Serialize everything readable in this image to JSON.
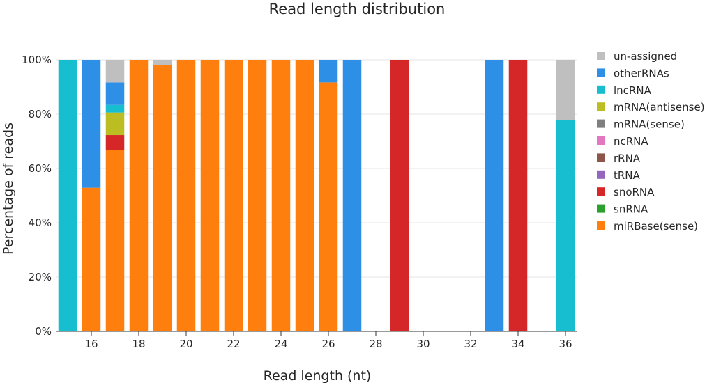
{
  "chart_data": {
    "type": "bar",
    "stacked": true,
    "title": "Read length distribution",
    "xlabel": "Read length (nt)",
    "ylabel": "Percentage of reads",
    "x": [
      15,
      16,
      17,
      18,
      19,
      20,
      21,
      22,
      23,
      24,
      25,
      26,
      27,
      28,
      29,
      30,
      31,
      32,
      33,
      34,
      35,
      36
    ],
    "xlim": [
      14.5,
      36.5
    ],
    "xticks": [
      16,
      18,
      20,
      22,
      24,
      26,
      28,
      30,
      32,
      34,
      36
    ],
    "ylim": [
      0,
      100
    ],
    "yticks": [
      0,
      20,
      40,
      60,
      80,
      100
    ],
    "ytick_labels": [
      "0%",
      "20%",
      "40%",
      "60%",
      "80%",
      "100%"
    ],
    "grid": "horizontal",
    "legend_position": "right",
    "series": [
      {
        "name": "miRBase(sense)",
        "color": "#ff7f0e",
        "values": [
          0,
          52.9,
          66.7,
          100,
          98.1,
          100,
          100,
          100,
          100,
          100,
          100,
          91.7,
          0,
          0,
          0,
          0,
          0,
          0,
          0,
          0,
          0,
          0
        ]
      },
      {
        "name": "snRNA",
        "color": "#2ca02c",
        "values": [
          0,
          0,
          0,
          0,
          0,
          0,
          0,
          0,
          0,
          0,
          0,
          0,
          0,
          0,
          0,
          0,
          0,
          0,
          0,
          0,
          0,
          0
        ]
      },
      {
        "name": "snoRNA",
        "color": "#d62728",
        "values": [
          0,
          0,
          5.6,
          0,
          0,
          0,
          0,
          0,
          0,
          0,
          0,
          0,
          0,
          0,
          100,
          0,
          0,
          0,
          0,
          100,
          0,
          0
        ]
      },
      {
        "name": "tRNA",
        "color": "#9467bd",
        "values": [
          0,
          0,
          0,
          0,
          0,
          0,
          0,
          0,
          0,
          0,
          0,
          0,
          0,
          0,
          0,
          0,
          0,
          0,
          0,
          0,
          0,
          0
        ]
      },
      {
        "name": "rRNA",
        "color": "#8c564b",
        "values": [
          0,
          0,
          0,
          0,
          0,
          0,
          0,
          0,
          0,
          0,
          0,
          0,
          0,
          0,
          0,
          0,
          0,
          0,
          0,
          0,
          0,
          0
        ]
      },
      {
        "name": "ncRNA",
        "color": "#e377c2",
        "values": [
          0,
          0,
          0,
          0,
          0,
          0,
          0,
          0,
          0,
          0,
          0,
          0,
          0,
          0,
          0,
          0,
          0,
          0,
          0,
          0,
          0,
          0
        ]
      },
      {
        "name": "mRNA(sense)",
        "color": "#7f7f7f",
        "values": [
          0,
          0,
          0,
          0,
          0,
          0,
          0,
          0,
          0,
          0,
          0,
          0,
          0,
          0,
          0,
          0,
          0,
          0,
          0,
          0,
          0,
          0
        ]
      },
      {
        "name": "mRNA(antisense)",
        "color": "#bcbd22",
        "values": [
          0,
          0,
          8.3,
          0,
          0,
          0,
          0,
          0,
          0,
          0,
          0,
          0,
          0,
          0,
          0,
          0,
          0,
          0,
          0,
          0,
          0,
          0
        ]
      },
      {
        "name": "lncRNA",
        "color": "#17becf",
        "values": [
          100,
          0,
          2.8,
          0,
          0,
          0,
          0,
          0,
          0,
          0,
          0,
          0,
          0,
          0,
          0,
          0,
          0,
          0,
          0,
          0,
          0,
          77.8
        ]
      },
      {
        "name": "otherRNAs",
        "color": "#2e8fe6",
        "values": [
          0,
          47.1,
          8.3,
          0,
          0,
          0,
          0,
          0,
          0,
          0,
          0,
          8.3,
          100,
          0,
          0,
          0,
          0,
          0,
          100,
          0,
          0,
          0
        ]
      },
      {
        "name": "un-assigned",
        "color": "#bfbfbf",
        "values": [
          0,
          0,
          8.3,
          0,
          1.9,
          0,
          0,
          0,
          0,
          0,
          0,
          0,
          0,
          0,
          0,
          0,
          0,
          0,
          0,
          0,
          0,
          22.2
        ]
      }
    ]
  }
}
